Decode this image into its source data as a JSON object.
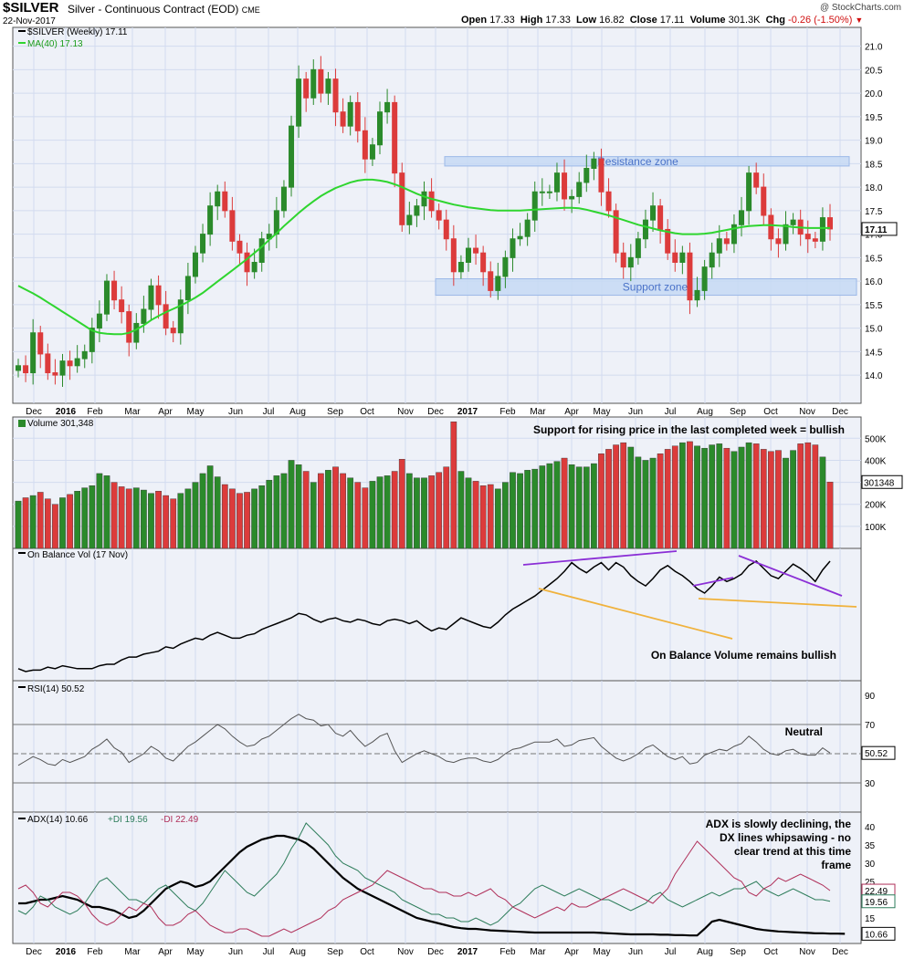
{
  "header": {
    "symbol": "$SILVER",
    "description": "Silver - Continuous Contract (EOD)",
    "exchange": "CME",
    "date": "22-Nov-2017",
    "open_label": "Open",
    "open": "17.33",
    "high_label": "High",
    "high": "17.33",
    "low_label": "Low",
    "low": "16.82",
    "close_label": "Close",
    "close": "17.11",
    "volume_label": "Volume",
    "volume": "301.3K",
    "chg_label": "Chg",
    "chg": "-0.26 (-1.50%)",
    "brand": "@ StockCharts.com"
  },
  "colors": {
    "up": "#2b8a2b",
    "down": "#dc3b3b",
    "ma": "#2fd52f",
    "obv": "#000000",
    "rsi": "#555555",
    "adx": "#000000",
    "plus_di": "#2e7d5b",
    "minus_di": "#b0305a",
    "zone": "#c6d9f5",
    "bg": "#eef1f8",
    "purple": "#8b2fd6",
    "orange": "#f0b23c"
  },
  "chart_data": [
    {
      "type": "candlestick",
      "legend": [
        "$SILVER (Weekly) 17.11",
        "MA(40) 17.13"
      ],
      "ylim": [
        13.4,
        21.4
      ],
      "y_ticks": [
        "21.0",
        "20.5",
        "20.0",
        "19.5",
        "19.0",
        "18.5",
        "18.0",
        "17.5",
        "17.0",
        "16.5",
        "16.0",
        "15.5",
        "15.0",
        "14.5",
        "14.0"
      ],
      "last_label": "17.11",
      "x_tick_labels": [
        "Dec",
        "2016",
        "Feb",
        "Mar",
        "Apr",
        "May",
        "Jun",
        "Jul",
        "Aug",
        "Sep",
        "Oct",
        "Nov",
        "Dec",
        "2017",
        "Feb",
        "Mar",
        "Apr",
        "May",
        "Jun",
        "Jul",
        "Aug",
        "Sep",
        "Oct",
        "Nov",
        "Dec"
      ],
      "zones": [
        {
          "label": "Resistance zone",
          "from": 18.45,
          "to": 18.65
        },
        {
          "label": "Support zone",
          "from": 15.7,
          "to": 16.05
        }
      ],
      "close": [
        14.2,
        14.05,
        14.9,
        14.45,
        14.05,
        14.0,
        14.3,
        14.2,
        14.35,
        14.5,
        15.0,
        15.3,
        16.0,
        15.6,
        15.35,
        14.7,
        15.1,
        15.4,
        15.9,
        15.5,
        15.0,
        14.9,
        15.6,
        16.1,
        16.6,
        17.0,
        17.6,
        17.9,
        17.5,
        16.85,
        16.6,
        16.2,
        16.4,
        16.9,
        17.0,
        17.5,
        18.0,
        19.3,
        20.3,
        19.9,
        20.5,
        20.0,
        20.3,
        19.6,
        19.3,
        19.8,
        19.2,
        18.6,
        18.9,
        19.6,
        19.8,
        18.3,
        17.2,
        17.4,
        17.6,
        17.9,
        17.5,
        17.3,
        16.9,
        16.2,
        16.4,
        16.7,
        16.6,
        16.2,
        15.8,
        16.1,
        16.5,
        16.9,
        16.95,
        17.3,
        17.9,
        17.9,
        17.9,
        18.3,
        17.75,
        17.8,
        18.1,
        18.4,
        18.6,
        17.9,
        17.5,
        16.6,
        16.3,
        16.5,
        16.9,
        17.3,
        17.6,
        17.1,
        16.6,
        16.4,
        16.6,
        15.6,
        15.8,
        16.3,
        16.6,
        16.9,
        16.8,
        17.2,
        17.5,
        18.3,
        18.0,
        17.4,
        16.9,
        16.8,
        17.2,
        17.3,
        17.0,
        16.9,
        16.85,
        17.35,
        17.11
      ],
      "ma40": [
        15.9,
        15.82,
        15.74,
        15.65,
        15.55,
        15.45,
        15.35,
        15.25,
        15.15,
        15.05,
        14.95,
        14.9,
        14.88,
        14.87,
        14.87,
        14.9,
        14.97,
        15.06,
        15.17,
        15.26,
        15.34,
        15.41,
        15.48,
        15.56,
        15.65,
        15.75,
        15.87,
        15.99,
        16.11,
        16.23,
        16.35,
        16.47,
        16.6,
        16.73,
        16.88,
        17.02,
        17.17,
        17.31,
        17.45,
        17.58,
        17.7,
        17.81,
        17.9,
        17.98,
        18.04,
        18.1,
        18.14,
        18.16,
        18.16,
        18.14,
        18.11,
        18.06,
        18.0,
        17.93,
        17.86,
        17.8,
        17.75,
        17.71,
        17.67,
        17.63,
        17.6,
        17.57,
        17.55,
        17.53,
        17.51,
        17.5,
        17.5,
        17.5,
        17.5,
        17.51,
        17.52,
        17.53,
        17.54,
        17.55,
        17.56,
        17.56,
        17.55,
        17.52,
        17.48,
        17.44,
        17.4,
        17.35,
        17.3,
        17.25,
        17.2,
        17.16,
        17.12,
        17.08,
        17.05,
        17.02,
        17.0,
        17.0,
        17.0,
        17.01,
        17.03,
        17.06,
        17.09,
        17.12,
        17.15,
        17.17,
        17.18,
        17.19,
        17.19,
        17.18,
        17.17,
        17.15,
        17.14,
        17.13,
        17.13,
        17.13,
        17.13
      ]
    },
    {
      "type": "bar",
      "legend": "Volume 301,348",
      "annotation": "Support for rising price in the last completed week = bullish",
      "y_ticks": [
        "500K",
        "400K",
        "300K",
        "200K",
        "100K"
      ],
      "last_label": "301348",
      "ylim": [
        0,
        580000
      ],
      "values": [
        215000,
        230000,
        240000,
        255000,
        225000,
        200000,
        230000,
        245000,
        260000,
        275000,
        285000,
        340000,
        330000,
        300000,
        280000,
        270000,
        275000,
        265000,
        250000,
        260000,
        240000,
        225000,
        250000,
        270000,
        300000,
        340000,
        375000,
        325000,
        290000,
        270000,
        250000,
        255000,
        270000,
        285000,
        310000,
        330000,
        340000,
        400000,
        380000,
        350000,
        300000,
        340000,
        355000,
        370000,
        340000,
        320000,
        300000,
        275000,
        305000,
        325000,
        330000,
        350000,
        405000,
        340000,
        320000,
        320000,
        330000,
        345000,
        370000,
        575000,
        350000,
        320000,
        305000,
        285000,
        290000,
        270000,
        300000,
        345000,
        340000,
        355000,
        360000,
        375000,
        385000,
        395000,
        410000,
        380000,
        370000,
        370000,
        385000,
        430000,
        450000,
        470000,
        480000,
        460000,
        415000,
        400000,
        410000,
        430000,
        450000,
        465000,
        480000,
        485000,
        465000,
        455000,
        470000,
        475000,
        455000,
        440000,
        460000,
        480000,
        475000,
        450000,
        440000,
        445000,
        410000,
        445000,
        475000,
        480000,
        470000,
        415000,
        301348
      ]
    },
    {
      "type": "line",
      "legend": "On Balance Vol (17 Nov)",
      "annotation": "On Balance Volume remains bullish",
      "values": [
        12,
        10,
        11,
        11,
        13,
        12,
        14,
        13,
        12,
        12,
        12,
        14,
        15,
        15,
        18,
        20,
        20,
        22,
        23,
        24,
        27,
        26,
        29,
        31,
        33,
        32,
        35,
        37,
        35,
        33,
        33,
        35,
        36,
        39,
        41,
        43,
        45,
        47,
        50,
        49,
        46,
        44,
        46,
        47,
        45,
        44,
        46,
        45,
        43,
        42,
        45,
        46,
        45,
        43,
        45,
        41,
        38,
        40,
        39,
        43,
        47,
        45,
        43,
        41,
        40,
        44,
        49,
        53,
        56,
        59,
        62,
        66,
        70,
        74,
        79,
        85,
        81,
        78,
        82,
        85,
        80,
        85,
        82,
        76,
        72,
        69,
        74,
        80,
        83,
        79,
        76,
        72,
        67,
        64,
        69,
        75,
        72,
        74,
        77,
        83,
        86,
        81,
        76,
        74,
        79,
        84,
        81,
        77,
        72,
        80,
        86
      ]
    },
    {
      "type": "line",
      "legend": "RSI(14) 50.52",
      "annotation": "Neutral",
      "y_ticks": [
        "90",
        "70",
        "50",
        "30"
      ],
      "last_label": "50.52",
      "ylim": [
        10,
        100
      ],
      "values": [
        42,
        45,
        48,
        46,
        43,
        42,
        46,
        44,
        46,
        48,
        53,
        56,
        60,
        54,
        51,
        44,
        47,
        50,
        55,
        52,
        47,
        45,
        50,
        55,
        58,
        62,
        66,
        70,
        67,
        62,
        58,
        55,
        56,
        60,
        62,
        66,
        70,
        74,
        77,
        74,
        73,
        69,
        70,
        64,
        62,
        66,
        60,
        55,
        58,
        62,
        64,
        52,
        44,
        47,
        50,
        52,
        50,
        48,
        45,
        44,
        46,
        47,
        47,
        45,
        44,
        46,
        50,
        53,
        54,
        56,
        58,
        58,
        58,
        60,
        55,
        56,
        59,
        60,
        61,
        55,
        51,
        47,
        45,
        47,
        50,
        54,
        56,
        52,
        48,
        46,
        48,
        43,
        44,
        49,
        51,
        53,
        52,
        55,
        57,
        62,
        58,
        53,
        50,
        49,
        52,
        53,
        50,
        49,
        49,
        54,
        50.52
      ]
    },
    {
      "type": "line",
      "legend": [
        "ADX(14) 10.66",
        "+DI 19.56",
        "-DI 22.49"
      ],
      "annotation": "ADX is slowly declining, the DX lines whipsawing - no clear trend at this time frame",
      "y_ticks": [
        "40",
        "35",
        "30",
        "25",
        "20",
        "15",
        "10"
      ],
      "last_labels": [
        "22.49",
        "19.56",
        "10.66"
      ],
      "ylim": [
        8,
        44
      ],
      "series": [
        {
          "name": "ADX(14)",
          "values": [
            19,
            19,
            19.5,
            20,
            20,
            20.5,
            21,
            20.5,
            20,
            19,
            18,
            18,
            17.5,
            17,
            16,
            15,
            15.5,
            17,
            19,
            21,
            23,
            24,
            25,
            24.5,
            23.5,
            24,
            25,
            27,
            29,
            31,
            33,
            34.5,
            35.5,
            36.5,
            37,
            37.5,
            37.5,
            37,
            36.5,
            35.5,
            34,
            32,
            30,
            28,
            26,
            24.5,
            23,
            22,
            21,
            20,
            19,
            18,
            17,
            16,
            15,
            14.5,
            14,
            13.5,
            13,
            12.5,
            12.2,
            12,
            12,
            11.8,
            11.6,
            11.5,
            11.4,
            11.3,
            11.2,
            11.1,
            11,
            11,
            11,
            11,
            11,
            11,
            11,
            11,
            11,
            10.9,
            10.8,
            10.7,
            10.6,
            10.5,
            10.5,
            10.5,
            10.5,
            10.4,
            10.4,
            10.3,
            10.3,
            10.2,
            10.2,
            12,
            14,
            14.5,
            14,
            13.5,
            13,
            12.5,
            12,
            11.7,
            11.5,
            11.3,
            11.2,
            11.1,
            11,
            10.9,
            10.8,
            10.8,
            10.7,
            10.7,
            10.66
          ]
        },
        {
          "name": "+DI",
          "values": [
            17,
            16,
            18,
            21,
            20,
            18,
            17,
            16,
            17,
            19,
            22,
            25,
            26,
            24,
            22,
            20,
            20,
            19,
            21,
            23,
            24,
            22,
            20,
            18,
            17,
            19,
            22,
            25,
            28,
            26,
            24,
            22,
            21,
            23,
            25,
            27,
            30,
            34,
            37,
            41,
            39,
            37,
            35,
            32,
            30,
            29,
            28,
            26,
            25,
            24,
            23,
            22,
            20,
            19,
            18,
            17,
            16,
            16,
            15,
            15,
            14,
            14,
            15,
            14,
            13,
            14,
            16,
            18,
            19,
            21,
            23,
            24,
            23,
            22,
            21,
            22,
            23,
            22,
            21,
            20,
            20,
            19,
            18,
            17,
            18,
            19,
            21,
            22,
            20,
            19,
            18,
            19,
            20,
            21,
            22,
            21,
            22,
            23,
            23,
            24,
            25,
            23,
            22,
            21,
            22,
            23,
            22,
            21,
            20,
            20,
            19.56
          ]
        },
        {
          "name": "-DI",
          "values": [
            23,
            24,
            22,
            19,
            18,
            20,
            22,
            22,
            21,
            19,
            16,
            14,
            13,
            14,
            16,
            18,
            17,
            19,
            18,
            15,
            13,
            13,
            14,
            16,
            17,
            15,
            13,
            12,
            11,
            11,
            12,
            12,
            11,
            10,
            10,
            11,
            12,
            11,
            12,
            13,
            14,
            15,
            17,
            18,
            20,
            21,
            22,
            23,
            24,
            26,
            28,
            27,
            26,
            25,
            24,
            23,
            23,
            22,
            22,
            21,
            21,
            22,
            21,
            22,
            23,
            21,
            20,
            18,
            17,
            16,
            15,
            16,
            17,
            18,
            17,
            19,
            18,
            18,
            19,
            20,
            21,
            22,
            23,
            22,
            21,
            20,
            19,
            21,
            23,
            27,
            30,
            33,
            36,
            34,
            32,
            30,
            28,
            26,
            25,
            22,
            21,
            23,
            24,
            26,
            25,
            26,
            27,
            26,
            25,
            24,
            22.49
          ]
        }
      ]
    }
  ]
}
